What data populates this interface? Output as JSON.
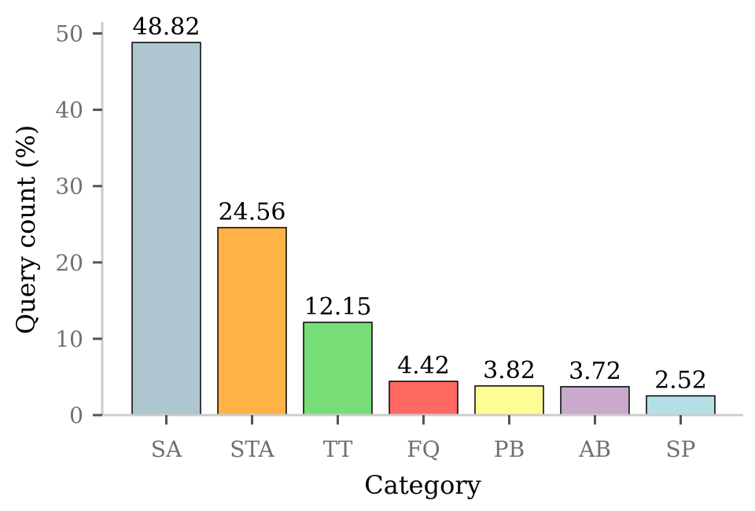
{
  "chart_data": {
    "type": "bar",
    "xlabel": "Category",
    "ylabel": "Query count (%)",
    "categories": [
      "SA",
      "STA",
      "TT",
      "FQ",
      "PB",
      "AB",
      "SP"
    ],
    "values": [
      48.82,
      24.56,
      12.15,
      4.42,
      3.82,
      3.72,
      2.52
    ],
    "value_labels": [
      "48.82",
      "24.56",
      "12.15",
      "4.42",
      "3.82",
      "3.72",
      "2.52"
    ],
    "colors": [
      "#AEC6CF",
      "#FFB347",
      "#77DD77",
      "#FF6961",
      "#FDFD96",
      "#C9A9CC",
      "#B2E0E4"
    ],
    "ylim": [
      0,
      51.5
    ],
    "yticks": [
      0,
      10,
      20,
      30,
      40,
      50
    ],
    "grid": false,
    "legend": "none"
  }
}
